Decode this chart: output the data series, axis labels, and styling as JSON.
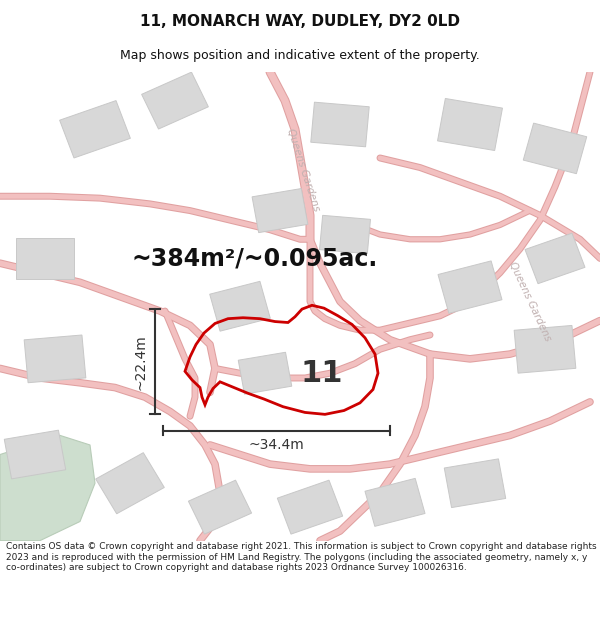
{
  "title": "11, MONARCH WAY, DUDLEY, DY2 0LD",
  "subtitle": "Map shows position and indicative extent of the property.",
  "area_text": "~384m²/~0.095ac.",
  "width_text": "~34.4m",
  "height_text": "~22.4m",
  "number_label": "11",
  "footer": "Contains OS data © Crown copyright and database right 2021. This information is subject to Crown copyright and database rights 2023 and is reproduced with the permission of HM Land Registry. The polygons (including the associated geometry, namely x, y co-ordinates) are subject to Crown copyright and database rights 2023 Ordnance Survey 100026316.",
  "bg_color": "#f5f4f4",
  "building_color": "#d8d8d8",
  "building_edge": "#c8c8c8",
  "road_fill": "#f2c0c0",
  "road_edge": "#e0a0a0",
  "plot_color": "#cc0000",
  "green_color": "#cddece",
  "green_edge": "#b8ccb8",
  "dim_color": "#333333",
  "title_color": "#111111",
  "footer_color": "#222222",
  "road_label_color": "#c0b0b0",
  "queens_gardens_label": "Queens Gardens"
}
